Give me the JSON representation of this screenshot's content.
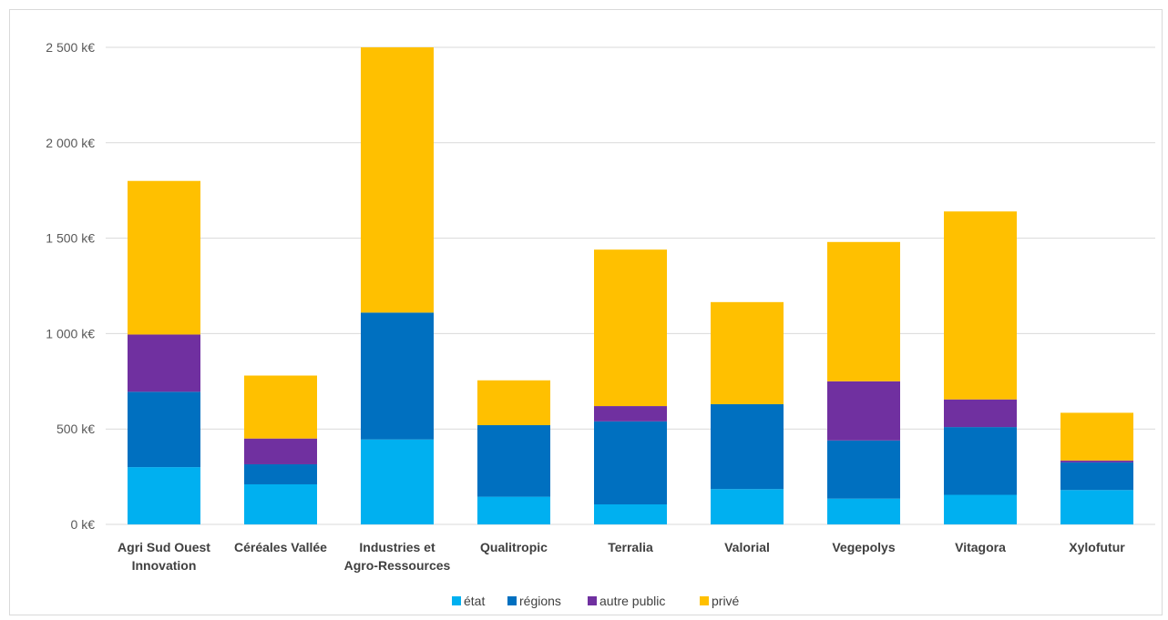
{
  "chart_data": {
    "type": "bar",
    "stacked": true,
    "categories": [
      [
        "Agri Sud Ouest",
        "Innovation"
      ],
      [
        "Céréales Vallée"
      ],
      [
        "Industries et",
        "Agro-Ressources"
      ],
      [
        "Qualitropic"
      ],
      [
        "Terralia"
      ],
      [
        "Valorial"
      ],
      [
        "Vegepolys"
      ],
      [
        "Vitagora"
      ],
      [
        "Xylofutur"
      ]
    ],
    "series": [
      {
        "name": "état",
        "color": "#00b0f0",
        "values": [
          300,
          210,
          445,
          145,
          105,
          185,
          135,
          155,
          180
        ]
      },
      {
        "name": "régions",
        "color": "#0070c0",
        "values": [
          395,
          105,
          665,
          375,
          435,
          445,
          305,
          355,
          145
        ]
      },
      {
        "name": "autre public",
        "color": "#7030a0",
        "values": [
          300,
          135,
          0,
          0,
          80,
          0,
          310,
          145,
          10
        ]
      },
      {
        "name": "privé",
        "color": "#ffc000",
        "values": [
          805,
          330,
          1390,
          235,
          820,
          535,
          730,
          985,
          250
        ]
      }
    ],
    "yticks": [
      "0 k€",
      "500 k€",
      "1 000 k€",
      "1 500 k€",
      "2 000 k€",
      "2 500 k€"
    ],
    "ylim": [
      0,
      2500
    ],
    "grid": true,
    "legend": "bottom"
  }
}
